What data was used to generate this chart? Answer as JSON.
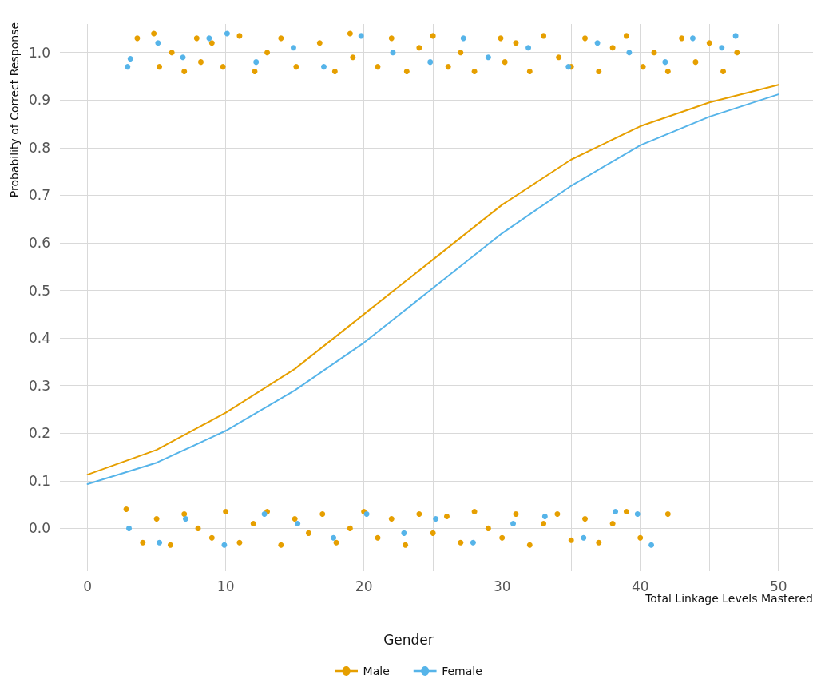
{
  "chart_data": {
    "type": "line",
    "xlabel": "Total Linkage Levels Mastered",
    "ylabel": "Probability of Correct Response",
    "legend_title": "Gender",
    "xlim": [
      -2,
      52.5
    ],
    "ylim": [
      -0.09,
      1.06
    ],
    "xticks": [
      0,
      {
        "value": 5,
        "label": null
      },
      10,
      {
        "value": 15,
        "label": null
      },
      20,
      {
        "value": 25,
        "label": null
      },
      30,
      {
        "value": 35,
        "label": null
      },
      40,
      {
        "value": 45,
        "label": null
      },
      50
    ],
    "yticks": [
      {
        "value": 0,
        "label": "0.0"
      },
      0.1,
      0.2,
      0.3,
      0.4,
      0.5,
      0.6,
      0.7,
      0.8,
      0.9,
      {
        "value": 1,
        "label": "1.0"
      }
    ],
    "grid": true,
    "legend": "bottom",
    "series": [
      {
        "type": "scatter",
        "marker": "circle",
        "color": "#e69f00",
        "x": [
          3.6,
          4.8,
          5.2,
          6.1,
          7.0,
          7.9,
          8.2,
          9.0,
          9.8,
          11.0,
          12.1,
          13.0,
          14.0,
          15.1,
          16.8,
          17.9,
          19.0,
          19.2,
          21.0,
          22.0,
          23.1,
          24.0,
          25.0,
          26.1,
          27.0,
          28.0,
          29.9,
          30.2,
          31.0,
          32.0,
          33.0,
          34.1,
          35.0,
          36.0,
          37.0,
          38.0,
          39.0,
          40.2,
          41.0,
          42.0,
          43.0,
          44.0,
          45.0,
          46.0,
          47.0,
          2.8,
          4.0,
          5.0,
          6.0,
          7.0,
          8.0,
          9.0,
          10.0,
          11.0,
          12.0,
          13.0,
          14.0,
          15.0,
          16.0,
          17.0,
          18.0,
          19.0,
          20.0,
          21.0,
          22.0,
          23.0,
          24.0,
          25.0,
          26.0,
          27.0,
          28.0,
          29.0,
          30.0,
          31.0,
          32.0,
          33.0,
          34.0,
          35.0,
          36.0,
          37.0,
          38.0,
          39.0,
          40.0,
          42.0
        ],
        "values": [
          1.03,
          1.04,
          0.97,
          1.0,
          0.96,
          1.03,
          0.98,
          1.02,
          0.97,
          1.035,
          0.96,
          1.0,
          1.03,
          0.97,
          1.02,
          0.96,
          1.04,
          0.99,
          0.97,
          1.03,
          0.96,
          1.01,
          1.035,
          0.97,
          1.0,
          0.96,
          1.03,
          0.98,
          1.02,
          0.96,
          1.035,
          0.99,
          0.97,
          1.03,
          0.96,
          1.01,
          1.035,
          0.97,
          1.0,
          0.96,
          1.03,
          0.98,
          1.02,
          0.96,
          1.0,
          0.04,
          -0.03,
          0.02,
          -0.035,
          0.03,
          0.0,
          -0.02,
          0.035,
          -0.03,
          0.01,
          0.035,
          -0.035,
          0.02,
          -0.01,
          0.03,
          -0.03,
          0.0,
          0.035,
          -0.02,
          0.02,
          -0.035,
          0.03,
          -0.01,
          0.025,
          -0.03,
          0.035,
          0.0,
          -0.02,
          0.03,
          -0.035,
          0.01,
          0.03,
          -0.025,
          0.02,
          -0.03,
          0.01,
          0.035,
          -0.02,
          0.03
        ]
      },
      {
        "type": "scatter",
        "marker": "circle",
        "color": "#56b4e9",
        "x": [
          2.9,
          3.1,
          5.1,
          6.9,
          8.8,
          10.1,
          12.2,
          14.9,
          17.1,
          19.8,
          22.1,
          24.8,
          27.2,
          29.0,
          31.9,
          34.8,
          36.9,
          39.2,
          41.8,
          43.8,
          45.9,
          46.9,
          3.0,
          5.2,
          7.1,
          9.9,
          12.8,
          15.2,
          17.8,
          20.2,
          22.9,
          25.2,
          27.9,
          30.8,
          33.1,
          35.9,
          38.2,
          39.8,
          40.8
        ],
        "values": [
          0.97,
          0.987,
          1.02,
          0.99,
          1.03,
          1.04,
          0.98,
          1.01,
          0.97,
          1.035,
          1.0,
          0.98,
          1.03,
          0.99,
          1.01,
          0.97,
          1.02,
          1.0,
          0.98,
          1.03,
          1.01,
          1.035,
          0.0,
          -0.03,
          0.02,
          -0.035,
          0.03,
          0.01,
          -0.02,
          0.03,
          -0.01,
          0.02,
          -0.03,
          0.01,
          0.025,
          -0.02,
          0.035,
          0.03,
          -0.035
        ]
      },
      {
        "name": "Male",
        "marker": "none",
        "line_style": "solid",
        "color": "#e69f00",
        "x": [
          0,
          5,
          10,
          15,
          20,
          25,
          30,
          35,
          40,
          45,
          50
        ],
        "values": [
          0.113,
          0.165,
          0.243,
          0.335,
          0.45,
          0.565,
          0.68,
          0.775,
          0.845,
          0.895,
          0.932
        ]
      },
      {
        "name": "Female",
        "marker": "none",
        "line_style": "solid",
        "color": "#56b4e9",
        "x": [
          0,
          5,
          10,
          15,
          20,
          25,
          30,
          35,
          40,
          45,
          50
        ],
        "values": [
          0.093,
          0.138,
          0.205,
          0.29,
          0.39,
          0.505,
          0.62,
          0.72,
          0.805,
          0.865,
          0.912
        ]
      }
    ]
  }
}
